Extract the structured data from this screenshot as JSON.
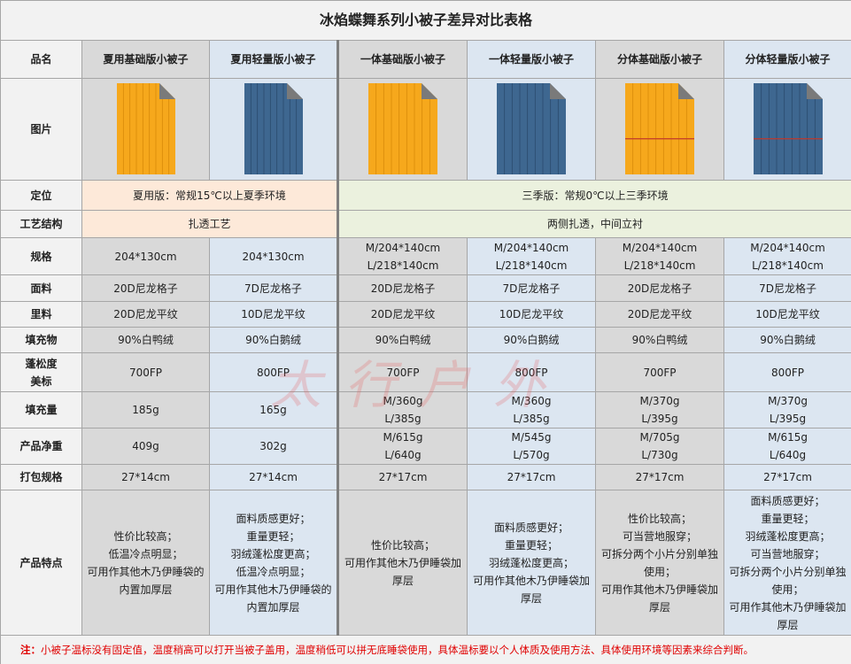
{
  "title": "冰焰蝶舞系列小被子差异对比表格",
  "table": {
    "header": {
      "label": "品名",
      "products": [
        "夏用基础版小被子",
        "夏用轻量版小被子",
        "一体基础版小被子",
        "一体轻量版小被子",
        "分体基础版小被子",
        "分体轻量版小被子"
      ]
    },
    "image_row": {
      "label": "图片"
    },
    "rows": [
      {
        "label": "定位",
        "cells": [
          "夏用版：常规15℃以上夏季环境",
          "三季版：常规0℃以上三季环境"
        ]
      },
      {
        "label": "工艺结构",
        "cells": [
          "扎透工艺",
          "两侧扎透，中间立衬"
        ]
      },
      {
        "label": "规格",
        "cells": [
          "204*130cm",
          "204*130cm",
          "M/204*140cm\nL/218*140cm",
          "M/204*140cm\nL/218*140cm",
          "M/204*140cm\nL/218*140cm",
          "M/204*140cm\nL/218*140cm"
        ]
      },
      {
        "label": "面料",
        "cells": [
          "20D尼龙格子",
          "7D尼龙格子",
          "20D尼龙格子",
          "7D尼龙格子",
          "20D尼龙格子",
          "7D尼龙格子"
        ]
      },
      {
        "label": "里料",
        "cells": [
          "20D尼龙平纹",
          "10D尼龙平纹",
          "20D尼龙平纹",
          "10D尼龙平纹",
          "20D尼龙平纹",
          "10D尼龙平纹"
        ]
      },
      {
        "label": "填充物",
        "cells": [
          "90%白鸭绒",
          "90%白鹅绒",
          "90%白鸭绒",
          "90%白鹅绒",
          "90%白鸭绒",
          "90%白鹅绒"
        ]
      },
      {
        "label": "蓬松度\n美标",
        "cells": [
          "700FP",
          "800FP",
          "700FP",
          "800FP",
          "700FP",
          "800FP"
        ]
      },
      {
        "label": "填充量",
        "cells": [
          "185g",
          "165g",
          "M/360g\nL/385g",
          "M/360g\nL/385g",
          "M/370g\nL/395g",
          "M/370g\nL/395g"
        ]
      },
      {
        "label": "产品净重",
        "cells": [
          "409g",
          "302g",
          "M/615g\nL/640g",
          "M/545g\nL/570g",
          "M/705g\nL/730g",
          "M/615g\nL/640g"
        ]
      },
      {
        "label": "打包规格",
        "cells": [
          "27*14cm",
          "27*14cm",
          "27*17cm",
          "27*17cm",
          "27*17cm",
          "27*17cm"
        ]
      },
      {
        "label": "产品特点",
        "cells": [
          "性价比较高；\n低温冷点明显；\n可用作其他木乃伊睡袋的\n内置加厚层",
          "面料质感更好；\n重量更轻；\n羽绒蓬松度更高；\n低温冷点明显；\n可用作其他木乃伊睡袋的\n内置加厚层",
          "性价比较高；\n可用作其他木乃伊睡袋加\n厚层",
          "面料质感更好；\n重量更轻；\n羽绒蓬松度更高；\n可用作其他木乃伊睡袋加\n厚层",
          "性价比较高；\n可当营地服穿；\n可拆分两个小片分别单独\n使用；\n可用作其他木乃伊睡袋加\n厚层",
          "面料质感更好；\n重量更轻；\n羽绒蓬松度更高；\n可当营地服穿；\n可拆分两个小片分别单独\n使用；\n可用作其他木乃伊睡袋加\n厚层"
        ]
      }
    ]
  },
  "note": {
    "label": "注：",
    "text": "小被子温标没有固定值，温度稍高可以打开当被子盖用，温度稍低可以拼无底睡袋使用，具体温标要以个人体质及使用方法、具体使用环境等因素来综合判断。"
  },
  "watermark": "太行户外"
}
